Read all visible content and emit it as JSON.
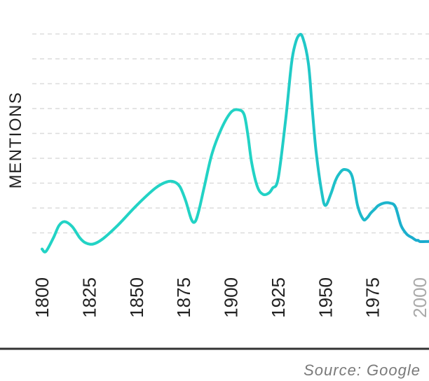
{
  "chart_data": {
    "type": "line",
    "title": "",
    "xlabel": "",
    "ylabel": "MENTIONS",
    "source": "Source: Google",
    "x_ticks": [
      "1800",
      "1825",
      "1850",
      "1875",
      "1900",
      "1925",
      "1950",
      "1975",
      "2000"
    ],
    "x_range": [
      1800,
      2010
    ],
    "y_range": [
      0,
      10
    ],
    "grid": true,
    "y_gridlines": [
      1,
      2,
      3,
      4,
      5,
      6,
      7,
      8,
      9
    ],
    "y_tick_labels_shown": false,
    "line_gradient": [
      "#22d3c5",
      "#1aa7cf"
    ],
    "series": [
      {
        "x": [
          1800,
          1802,
          1806,
          1809,
          1812,
          1816,
          1820,
          1823,
          1827,
          1832,
          1840,
          1850,
          1860,
          1866,
          1870,
          1873,
          1876,
          1879,
          1881,
          1883,
          1886,
          1890,
          1895,
          1900,
          1904,
          1907,
          1909,
          1911,
          1914,
          1917,
          1920,
          1922,
          1925,
          1929,
          1932,
          1934,
          1936,
          1938,
          1941,
          1943,
          1945,
          1948,
          1950,
          1953,
          1955,
          1957,
          1960,
          1964,
          1967,
          1970,
          1972,
          1974,
          1976,
          1978,
          1981,
          1984,
          1987,
          1990,
          1993,
          1996,
          1998,
          1999,
          2000,
          2003,
          2007,
          2010
        ],
        "y": [
          0.35,
          0.25,
          0.8,
          1.3,
          1.45,
          1.25,
          0.8,
          0.6,
          0.55,
          0.75,
          1.3,
          2.1,
          2.8,
          3.05,
          3.05,
          2.85,
          2.3,
          1.55,
          1.45,
          1.9,
          2.9,
          4.2,
          5.2,
          5.85,
          5.95,
          5.75,
          4.9,
          3.8,
          2.85,
          2.55,
          2.6,
          2.8,
          3.2,
          5.6,
          7.8,
          8.6,
          8.95,
          8.85,
          7.8,
          6.0,
          4.3,
          2.65,
          2.1,
          2.6,
          3.05,
          3.35,
          3.55,
          3.3,
          2.1,
          1.55,
          1.6,
          1.8,
          1.95,
          2.1,
          2.2,
          2.2,
          2.05,
          1.3,
          0.95,
          0.8,
          0.7,
          0.7,
          0.65,
          0.65,
          0.65,
          0.6
        ]
      }
    ]
  }
}
